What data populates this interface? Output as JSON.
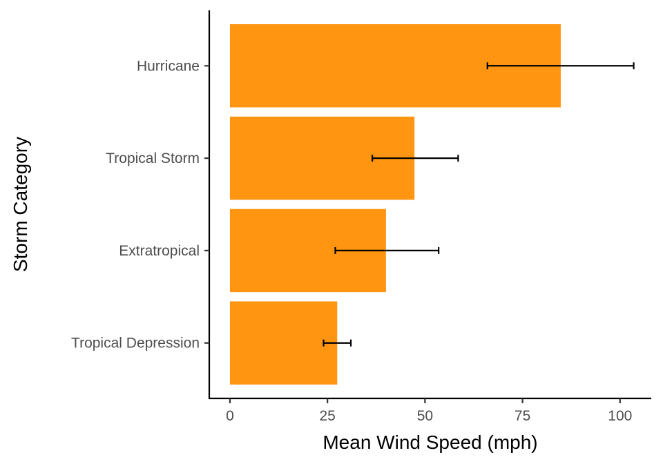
{
  "chart_data": {
    "type": "bar",
    "orientation": "horizontal",
    "title": "",
    "xlabel": "Mean Wind Speed (mph)",
    "ylabel": "Storm Category",
    "categories": [
      "Tropical Depression",
      "Extratropical",
      "Tropical Storm",
      "Hurricane"
    ],
    "values": [
      27.5,
      40,
      47.3,
      84.8
    ],
    "error_low": [
      24,
      27,
      36.5,
      66
    ],
    "error_high": [
      31,
      53.5,
      58.5,
      103.5
    ],
    "xlim": [
      -5.3,
      108
    ],
    "xticks": [
      0,
      25,
      50,
      75,
      100
    ],
    "xtick_labels": [
      "0",
      "25",
      "50",
      "75",
      "100"
    ],
    "grid": false,
    "legend": "none",
    "bar_color": "#FF9510",
    "error_bar_color": "#000000"
  }
}
